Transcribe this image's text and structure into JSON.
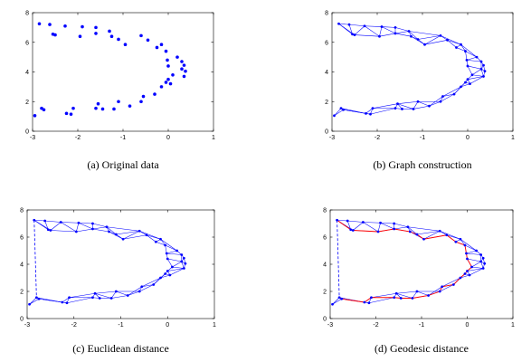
{
  "chart_data": [
    {
      "type": "scatter",
      "caption": "(a)  Original data",
      "show_points": true,
      "show_graph": false,
      "show_euclidean": false,
      "show_geodesic": false,
      "xlim": [
        -3,
        1
      ],
      "ylim": [
        0,
        8
      ],
      "xticks": [
        -3,
        -2,
        -1,
        0,
        1
      ],
      "yticks": [
        0,
        2,
        4,
        6,
        8
      ],
      "grid": false,
      "point_color": "#0000ff"
    },
    {
      "type": "scatter",
      "caption": "(b)  Graph construction",
      "show_points": true,
      "show_graph": true,
      "show_euclidean": false,
      "show_geodesic": false,
      "xlim": [
        -3,
        1
      ],
      "ylim": [
        0,
        8
      ],
      "xticks": [
        -3,
        -2,
        -1,
        0,
        1
      ],
      "yticks": [
        0,
        2,
        4,
        6,
        8
      ],
      "grid": false,
      "point_color": "#0000ff",
      "edge_color": "#0000ff"
    },
    {
      "type": "scatter",
      "caption": "(c)  Euclidean distance",
      "show_points": true,
      "show_graph": true,
      "show_euclidean": true,
      "show_geodesic": false,
      "xlim": [
        -3,
        1
      ],
      "ylim": [
        0,
        8
      ],
      "xticks": [
        -3,
        -2,
        -1,
        0,
        1
      ],
      "yticks": [
        0,
        2,
        4,
        6,
        8
      ],
      "grid": false,
      "point_color": "#0000ff",
      "edge_color": "#0000ff",
      "euclidean_color": "#0000ff"
    },
    {
      "type": "scatter",
      "caption": "(d)  Geodesic distance",
      "show_points": true,
      "show_graph": true,
      "show_euclidean": true,
      "show_geodesic": true,
      "xlim": [
        -3,
        1
      ],
      "ylim": [
        0,
        8
      ],
      "xticks": [
        -3,
        -2,
        -1,
        0,
        1
      ],
      "yticks": [
        0,
        2,
        4,
        6,
        8
      ],
      "grid": false,
      "point_color": "#0000ff",
      "edge_color": "#0000ff",
      "euclidean_color": "#0000ff",
      "geodesic_color": "#ff0000"
    }
  ],
  "points": [
    [
      -2.85,
      7.25
    ],
    [
      -2.62,
      7.2
    ],
    [
      -2.55,
      6.55
    ],
    [
      -2.5,
      6.5
    ],
    [
      -2.28,
      7.1
    ],
    [
      -1.95,
      6.4
    ],
    [
      -1.9,
      7.05
    ],
    [
      -1.6,
      7.0
    ],
    [
      -1.6,
      6.6
    ],
    [
      -1.3,
      6.75
    ],
    [
      -1.25,
      6.4
    ],
    [
      -1.1,
      6.2
    ],
    [
      -0.95,
      5.85
    ],
    [
      -0.6,
      6.45
    ],
    [
      -0.45,
      6.15
    ],
    [
      -0.25,
      5.65
    ],
    [
      -0.15,
      5.85
    ],
    [
      -0.05,
      5.4
    ],
    [
      -0.02,
      4.8
    ],
    [
      0.2,
      5.0
    ],
    [
      0.3,
      4.7
    ],
    [
      0.35,
      4.45
    ],
    [
      0.38,
      4.05
    ],
    [
      0.3,
      4.2
    ],
    [
      0.35,
      3.7
    ],
    [
      0.1,
      3.8
    ],
    [
      0.0,
      4.4
    ],
    [
      0.0,
      3.5
    ],
    [
      -0.05,
      3.3
    ],
    [
      -0.15,
      3.0
    ],
    [
      0.05,
      3.2
    ],
    [
      -0.3,
      2.5
    ],
    [
      -0.55,
      2.35
    ],
    [
      -0.6,
      2.0
    ],
    [
      -0.85,
      1.7
    ],
    [
      -1.1,
      2.0
    ],
    [
      -1.2,
      1.5
    ],
    [
      -1.45,
      1.5
    ],
    [
      -1.55,
      1.85
    ],
    [
      -1.6,
      1.55
    ],
    [
      -2.1,
      1.55
    ],
    [
      -2.15,
      1.15
    ],
    [
      -2.25,
      1.2
    ],
    [
      -2.8,
      1.55
    ],
    [
      -2.75,
      1.45
    ],
    [
      -2.95,
      1.05
    ]
  ],
  "edges": [
    [
      0,
      1
    ],
    [
      0,
      2
    ],
    [
      0,
      3
    ],
    [
      1,
      2
    ],
    [
      1,
      4
    ],
    [
      2,
      3
    ],
    [
      3,
      4
    ],
    [
      4,
      5
    ],
    [
      4,
      6
    ],
    [
      5,
      6
    ],
    [
      3,
      5
    ],
    [
      5,
      8
    ],
    [
      6,
      7
    ],
    [
      6,
      8
    ],
    [
      7,
      8
    ],
    [
      7,
      9
    ],
    [
      8,
      9
    ],
    [
      8,
      10
    ],
    [
      9,
      10
    ],
    [
      9,
      11
    ],
    [
      10,
      11
    ],
    [
      11,
      12
    ],
    [
      10,
      12
    ],
    [
      9,
      13
    ],
    [
      11,
      13
    ],
    [
      12,
      13
    ],
    [
      13,
      14
    ],
    [
      12,
      14
    ],
    [
      14,
      15
    ],
    [
      14,
      16
    ],
    [
      15,
      16
    ],
    [
      13,
      16
    ],
    [
      16,
      17
    ],
    [
      15,
      17
    ],
    [
      16,
      19
    ],
    [
      17,
      19
    ],
    [
      17,
      18
    ],
    [
      18,
      19
    ],
    [
      19,
      20
    ],
    [
      18,
      20
    ],
    [
      20,
      21
    ],
    [
      20,
      23
    ],
    [
      21,
      23
    ],
    [
      21,
      22
    ],
    [
      22,
      23
    ],
    [
      18,
      26
    ],
    [
      26,
      23
    ],
    [
      26,
      25
    ],
    [
      25,
      23
    ],
    [
      22,
      24
    ],
    [
      23,
      24
    ],
    [
      24,
      25
    ],
    [
      25,
      27
    ],
    [
      24,
      27
    ],
    [
      27,
      28
    ],
    [
      27,
      30
    ],
    [
      28,
      30
    ],
    [
      24,
      30
    ],
    [
      28,
      29
    ],
    [
      29,
      30
    ],
    [
      29,
      31
    ],
    [
      28,
      31
    ],
    [
      31,
      32
    ],
    [
      29,
      32
    ],
    [
      32,
      33
    ],
    [
      31,
      33
    ],
    [
      33,
      34
    ],
    [
      32,
      34
    ],
    [
      33,
      35
    ],
    [
      34,
      35
    ],
    [
      34,
      36
    ],
    [
      35,
      36
    ],
    [
      35,
      38
    ],
    [
      36,
      37
    ],
    [
      36,
      38
    ],
    [
      37,
      38
    ],
    [
      37,
      39
    ],
    [
      38,
      39
    ],
    [
      39,
      40
    ],
    [
      38,
      40
    ],
    [
      39,
      41
    ],
    [
      40,
      41
    ],
    [
      40,
      42
    ],
    [
      41,
      42
    ],
    [
      42,
      43
    ],
    [
      42,
      44
    ],
    [
      43,
      44
    ],
    [
      44,
      45
    ],
    [
      43,
      45
    ],
    [
      41,
      44
    ]
  ],
  "euclidean_pair": [
    0,
    43
  ],
  "geodesic_path": [
    0,
    2,
    3,
    5,
    8,
    10,
    11,
    12,
    14,
    15,
    17,
    18,
    26,
    25,
    27,
    28,
    29,
    31,
    32,
    33,
    34,
    36,
    37,
    39,
    40,
    42,
    44,
    43
  ]
}
